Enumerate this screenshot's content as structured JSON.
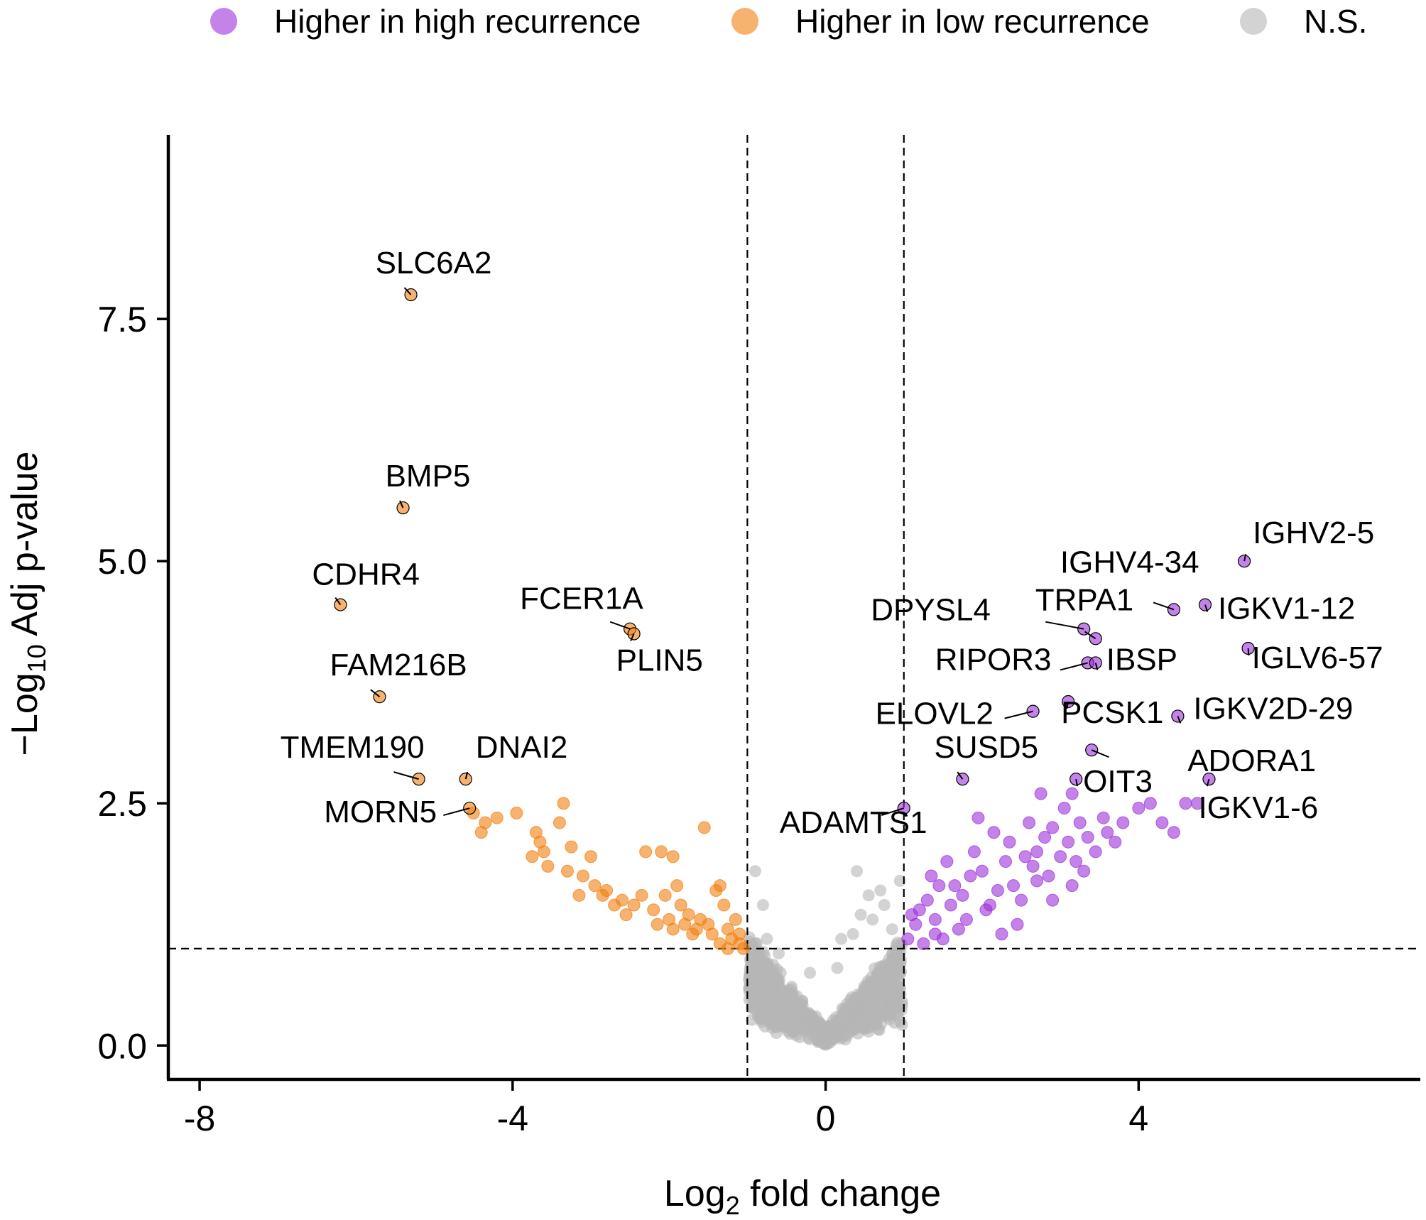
{
  "chart_data": {
    "type": "scatter",
    "xlabel": "Log2 fold change",
    "xlabel_main": "Log",
    "xlabel_sub": "2",
    "xlabel_rest": " fold change",
    "ylabel": "−Log10 Adj p-value",
    "ylabel_main": "−Log",
    "ylabel_sub": "10",
    "ylabel_rest": " Adj p-value",
    "xlim": [
      -8.4,
      7.6
    ],
    "ylim": [
      -0.35,
      9.4
    ],
    "x_ticks": [
      -8,
      -4,
      0,
      4
    ],
    "x_tick_labels": [
      "-8",
      "-4",
      "0",
      "4"
    ],
    "y_ticks": [
      0,
      2.5,
      5,
      7.5
    ],
    "y_tick_labels": [
      "0.0",
      "2.5",
      "5.0",
      "7.5"
    ],
    "thresholds": {
      "vlines": [
        -1,
        1
      ],
      "hline": 1
    },
    "grid": false,
    "legend_position": "top",
    "colors": {
      "high": "#9b30d9",
      "low": "#f07f0e",
      "ns": "#b5b5b5"
    },
    "series": [
      {
        "key": "high",
        "name": "Higher in high recurrence",
        "color": "#9b30d9"
      },
      {
        "key": "low",
        "name": "Higher in low recurrence",
        "color": "#f07f0e"
      },
      {
        "key": "ns",
        "name": "N.S.",
        "color": "#b5b5b5"
      }
    ],
    "labeled_genes": [
      {
        "gene": "SLC6A2",
        "x": -5.3,
        "y": 7.75,
        "group": "low"
      },
      {
        "gene": "BMP5",
        "x": -5.4,
        "y": 5.55,
        "group": "low"
      },
      {
        "gene": "CDHR4",
        "x": -6.2,
        "y": 4.55,
        "group": "low"
      },
      {
        "gene": "FCER1A",
        "x": -2.5,
        "y": 4.3,
        "group": "low"
      },
      {
        "gene": "PLIN5",
        "x": -2.45,
        "y": 4.25,
        "group": "low"
      },
      {
        "gene": "FAM216B",
        "x": -5.7,
        "y": 3.6,
        "group": "low"
      },
      {
        "gene": "TMEM190",
        "x": -5.2,
        "y": 2.75,
        "group": "low"
      },
      {
        "gene": "DNAI2",
        "x": -4.6,
        "y": 2.75,
        "group": "low"
      },
      {
        "gene": "MORN5",
        "x": -4.55,
        "y": 2.45,
        "group": "low"
      },
      {
        "gene": "IGHV2-5",
        "x": 5.35,
        "y": 5.0,
        "group": "high"
      },
      {
        "gene": "IGHV4-34",
        "x": 4.45,
        "y": 4.5,
        "group": "high"
      },
      {
        "gene": "IGKV1-12",
        "x": 4.85,
        "y": 4.55,
        "group": "high"
      },
      {
        "gene": "DPYSL4",
        "x": 3.3,
        "y": 4.3,
        "group": "high"
      },
      {
        "gene": "TRPA1",
        "x": 3.45,
        "y": 4.2,
        "group": "high"
      },
      {
        "gene": "IGLV6-57",
        "x": 5.4,
        "y": 4.1,
        "group": "high"
      },
      {
        "gene": "RIPOR3",
        "x": 3.35,
        "y": 3.95,
        "group": "high"
      },
      {
        "gene": "IBSP",
        "x": 3.45,
        "y": 3.95,
        "group": "high"
      },
      {
        "gene": "ELOVL2",
        "x": 2.65,
        "y": 3.45,
        "group": "high"
      },
      {
        "gene": "PCSK1",
        "x": 3.1,
        "y": 3.55,
        "group": "high"
      },
      {
        "gene": "IGKV2D-29",
        "x": 4.5,
        "y": 3.4,
        "group": "high"
      },
      {
        "gene": "ADORA1",
        "x": 3.4,
        "y": 3.05,
        "group": "high"
      },
      {
        "gene": "SUSD5",
        "x": 1.75,
        "y": 2.75,
        "group": "high"
      },
      {
        "gene": "OIT3",
        "x": 3.2,
        "y": 2.75,
        "group": "high"
      },
      {
        "gene": "IGKV1-6",
        "x": 4.9,
        "y": 2.75,
        "group": "high"
      },
      {
        "gene": "ADAMTS1",
        "x": 1.0,
        "y": 2.45,
        "group": "high"
      }
    ],
    "points": {
      "low": [
        [
          -4.5,
          2.4
        ],
        [
          -4.35,
          2.3
        ],
        [
          -4.4,
          2.2
        ],
        [
          -4.2,
          2.35
        ],
        [
          -3.95,
          2.4
        ],
        [
          -3.7,
          2.2
        ],
        [
          -3.65,
          2.1
        ],
        [
          -3.35,
          2.5
        ],
        [
          -3.4,
          2.3
        ],
        [
          -3.6,
          2.0
        ],
        [
          -3.75,
          1.95
        ],
        [
          -3.55,
          1.85
        ],
        [
          -3.25,
          2.05
        ],
        [
          -3.0,
          1.95
        ],
        [
          -3.3,
          1.8
        ],
        [
          -3.1,
          1.75
        ],
        [
          -2.95,
          1.65
        ],
        [
          -3.15,
          1.55
        ],
        [
          -2.8,
          1.6
        ],
        [
          -2.6,
          1.5
        ],
        [
          -2.45,
          1.45
        ],
        [
          -2.55,
          1.35
        ],
        [
          -2.3,
          2.0
        ],
        [
          -2.1,
          2.0
        ],
        [
          -1.95,
          1.95
        ],
        [
          -2.05,
          1.55
        ],
        [
          -1.85,
          1.45
        ],
        [
          -1.9,
          1.65
        ],
        [
          -1.55,
          2.25
        ],
        [
          -1.75,
          1.35
        ],
        [
          -1.6,
          1.3
        ],
        [
          -1.4,
          1.6
        ],
        [
          -1.35,
          1.65
        ],
        [
          -1.3,
          1.45
        ],
        [
          -1.25,
          1.2
        ],
        [
          -1.45,
          1.15
        ],
        [
          -1.35,
          1.05
        ],
        [
          -1.2,
          1.1
        ],
        [
          -1.1,
          1.05
        ],
        [
          -1.05,
          1.0
        ],
        [
          -1.15,
          1.3
        ],
        [
          -1.5,
          1.25
        ],
        [
          -1.65,
          1.2
        ],
        [
          -1.8,
          1.25
        ],
        [
          -2.0,
          1.3
        ],
        [
          -2.2,
          1.4
        ],
        [
          -2.35,
          1.55
        ],
        [
          -2.7,
          1.45
        ],
        [
          -2.85,
          1.55
        ],
        [
          -2.15,
          1.25
        ],
        [
          -1.95,
          1.2
        ],
        [
          -1.7,
          1.15
        ],
        [
          -1.25,
          1.0
        ],
        [
          -1.1,
          1.15
        ]
      ],
      "high": [
        [
          1.05,
          1.1
        ],
        [
          1.15,
          1.25
        ],
        [
          1.2,
          1.4
        ],
        [
          1.3,
          1.5
        ],
        [
          1.4,
          1.3
        ],
        [
          1.45,
          1.65
        ],
        [
          1.55,
          1.9
        ],
        [
          1.6,
          1.45
        ],
        [
          1.7,
          1.2
        ],
        [
          1.75,
          1.55
        ],
        [
          1.85,
          1.75
        ],
        [
          1.9,
          2.0
        ],
        [
          2.0,
          1.8
        ],
        [
          2.05,
          1.4
        ],
        [
          2.15,
          2.2
        ],
        [
          2.2,
          1.6
        ],
        [
          2.3,
          1.9
        ],
        [
          2.35,
          2.1
        ],
        [
          2.4,
          1.65
        ],
        [
          2.5,
          1.5
        ],
        [
          2.55,
          1.95
        ],
        [
          2.6,
          2.3
        ],
        [
          2.65,
          1.85
        ],
        [
          2.7,
          2.0
        ],
        [
          2.75,
          2.6
        ],
        [
          2.8,
          2.15
        ],
        [
          2.85,
          1.75
        ],
        [
          2.9,
          2.25
        ],
        [
          3.0,
          1.95
        ],
        [
          3.05,
          2.45
        ],
        [
          3.1,
          2.1
        ],
        [
          3.15,
          2.6
        ],
        [
          3.2,
          1.9
        ],
        [
          3.25,
          2.3
        ],
        [
          3.35,
          2.15
        ],
        [
          3.45,
          2.0
        ],
        [
          3.55,
          2.35
        ],
        [
          3.6,
          2.2
        ],
        [
          3.7,
          2.1
        ],
        [
          3.8,
          2.3
        ],
        [
          4.0,
          2.45
        ],
        [
          4.15,
          2.5
        ],
        [
          4.3,
          2.3
        ],
        [
          4.45,
          2.2
        ],
        [
          4.6,
          2.5
        ],
        [
          4.75,
          2.5
        ],
        [
          1.25,
          1.05
        ],
        [
          1.5,
          1.1
        ],
        [
          1.8,
          1.3
        ],
        [
          2.1,
          1.45
        ],
        [
          2.45,
          1.25
        ],
        [
          2.9,
          1.5
        ],
        [
          3.15,
          1.65
        ],
        [
          1.1,
          1.35
        ],
        [
          1.35,
          1.75
        ],
        [
          1.65,
          1.65
        ],
        [
          2.25,
          1.15
        ],
        [
          2.7,
          1.7
        ],
        [
          3.3,
          1.8
        ],
        [
          1.95,
          2.35
        ],
        [
          1.4,
          1.15
        ]
      ],
      "ns": [
        [
          -0.9,
          1.8
        ],
        [
          -0.8,
          1.45
        ],
        [
          0.2,
          1.1
        ],
        [
          0.35,
          1.15
        ],
        [
          0.45,
          1.35
        ],
        [
          0.55,
          1.55
        ],
        [
          0.6,
          1.3
        ],
        [
          0.7,
          1.6
        ],
        [
          0.75,
          1.45
        ],
        [
          0.85,
          1.2
        ],
        [
          0.95,
          1.7
        ],
        [
          0.4,
          1.8
        ],
        [
          -0.75,
          1.1
        ],
        [
          -0.6,
          0.95
        ],
        [
          -0.9,
          0.95
        ],
        [
          0.9,
          1.0
        ],
        [
          0.15,
          0.8
        ],
        [
          -0.2,
          0.75
        ]
      ]
    }
  }
}
